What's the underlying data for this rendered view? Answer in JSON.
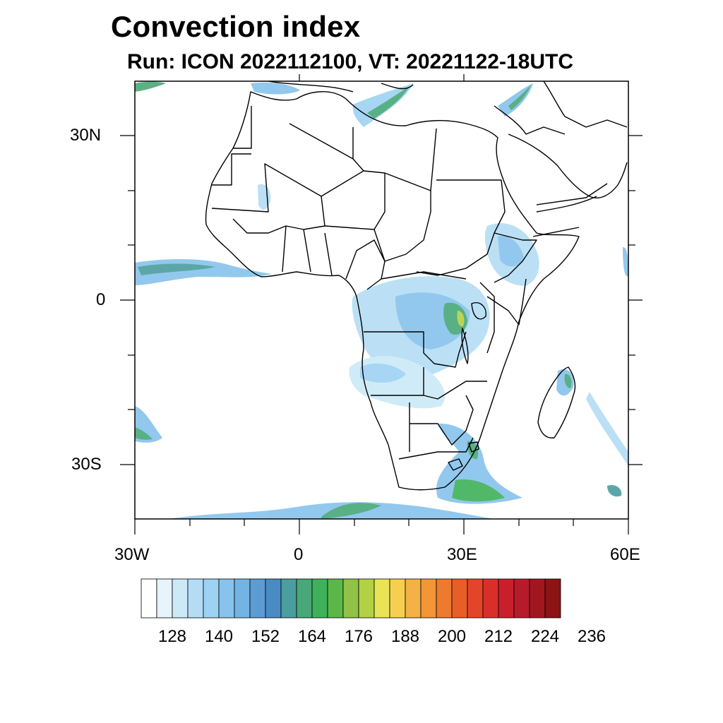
{
  "title": "Convection index",
  "subtitle": "Run: ICON 2022112100,  VT: 20221122-18UTC",
  "map": {
    "extent": {
      "lon_min": -30,
      "lon_max": 60,
      "lat_min": -40,
      "lat_max": 40
    },
    "lon_ticks": [
      {
        "lon": -30,
        "label": "30W"
      },
      {
        "lon": 0,
        "label": "0"
      },
      {
        "lon": 30,
        "label": "30E"
      },
      {
        "lon": 60,
        "label": "60E"
      }
    ],
    "lat_ticks": [
      {
        "lat": 30,
        "label": "30N"
      },
      {
        "lat": 0,
        "label": "0"
      },
      {
        "lat": -30,
        "label": "30S"
      }
    ]
  },
  "colorbar": {
    "colors": [
      "#ffffff",
      "#e6f4fb",
      "#cce9f8",
      "#b4ddf5",
      "#9dd2f3",
      "#87c3ec",
      "#74b4e4",
      "#5b9cd4",
      "#4a8bc4",
      "#4a9e9e",
      "#48a878",
      "#3fb15a",
      "#5bb848",
      "#8fc247",
      "#b2d145",
      "#e9e455",
      "#f7cf50",
      "#f4b145",
      "#f29637",
      "#ee7a2e",
      "#e95d27",
      "#e34528",
      "#d83029",
      "#c91f2b",
      "#b71a2a",
      "#a0171f",
      "#8b1414"
    ],
    "labels": [
      "128",
      "140",
      "152",
      "164",
      "176",
      "188",
      "200",
      "212",
      "224",
      "236"
    ]
  }
}
